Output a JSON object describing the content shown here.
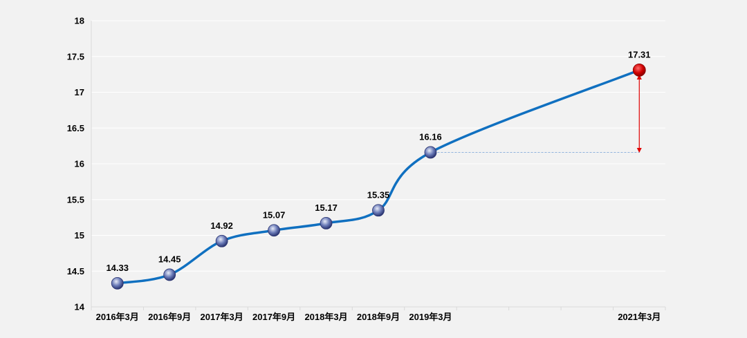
{
  "chart_data": {
    "type": "line",
    "title": "",
    "xlabel": "",
    "ylabel": "",
    "ylim": [
      14,
      18
    ],
    "yticks": [
      "14",
      "14.5",
      "15",
      "15.5",
      "16",
      "16.5",
      "17",
      "17.5",
      "18"
    ],
    "categories": [
      "2016年3月",
      "2016年9月",
      "2017年3月",
      "2017年9月",
      "2018年3月",
      "2018年9月",
      "2019年3月",
      "",
      "",
      "",
      "2021年3月"
    ],
    "series": [
      {
        "values": [
          14.33,
          14.45,
          14.92,
          15.07,
          15.17,
          15.35,
          16.16,
          null,
          null,
          null,
          17.31
        ],
        "labels": [
          "14.33",
          "14.45",
          "14.92",
          "15.07",
          "15.17",
          "15.35",
          "16.16",
          "",
          "",
          "",
          "17.31"
        ]
      }
    ],
    "grid": true,
    "legend": "none",
    "colors": {
      "line": "#1070c0",
      "marker": "#3a4a8c",
      "highlight_marker": "#c00000",
      "arrow": "#e00000",
      "reference_line": "#8fb3dd"
    }
  }
}
